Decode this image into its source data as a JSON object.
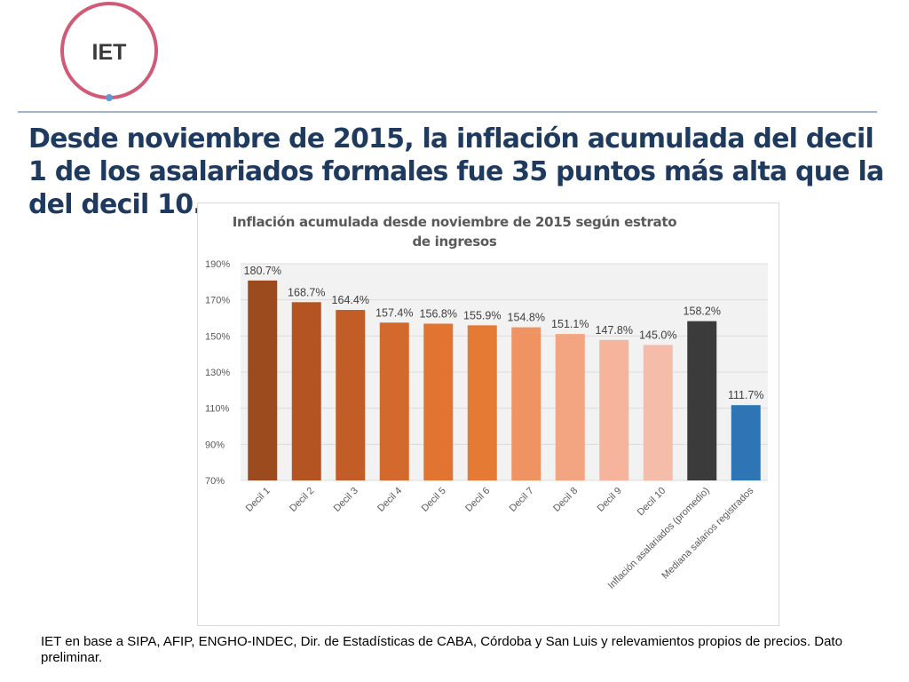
{
  "logo": {
    "text": "IET",
    "ring_color": "#d05a78",
    "dot_color": "#5b9bd5"
  },
  "headline": "Desde noviembre de 2015, la inflación acumulada del decil 1 de los asalariados formales fue 35 puntos más alta que la del decil 10.",
  "footnote": "IET en base a SIPA, AFIP, ENGHO-INDEC, Dir. de Estadísticas de CABA, Córdoba y San Luis y relevamientos propios de precios. Dato preliminar.",
  "chart_data": {
    "type": "bar",
    "title": "Inflación acumulada desde noviembre de 2015 según estrato de ingresos",
    "title_lines": [
      "Inflación acumulada desde noviembre de 2015 según estrato",
      "de ingresos"
    ],
    "xlabel": "",
    "ylabel": "",
    "ylim": [
      70,
      190
    ],
    "yticks": [
      70,
      90,
      110,
      130,
      150,
      170,
      190
    ],
    "ytick_labels": [
      "70%",
      "90%",
      "110%",
      "130%",
      "150%",
      "170%",
      "190%"
    ],
    "grid": true,
    "categories": [
      "Decil 1",
      "Decil 2",
      "Decil 3",
      "Decil 4",
      "Decil 5",
      "Decil 6",
      "Decil 7",
      "Decil 8",
      "Decil 9",
      "Decil 10",
      "Inflación asalariados (promedio)",
      "Mediana salarios registrados"
    ],
    "values": [
      180.7,
      168.7,
      164.4,
      157.4,
      156.8,
      155.9,
      154.8,
      151.1,
      147.8,
      145.0,
      158.2,
      111.7
    ],
    "data_labels": [
      "180.7%",
      "168.7%",
      "164.4%",
      "157.4%",
      "156.8%",
      "155.9%",
      "154.8%",
      "151.1%",
      "147.8%",
      "145.0%",
      "158.2%",
      "111.7%"
    ],
    "colors": [
      "#9c4b1f",
      "#b35422",
      "#c25d28",
      "#d4692e",
      "#e17431",
      "#e57a34",
      "#ef9362",
      "#f3a582",
      "#f5b49b",
      "#f5bcaa",
      "#3b3b3b",
      "#2e75b6"
    ]
  }
}
